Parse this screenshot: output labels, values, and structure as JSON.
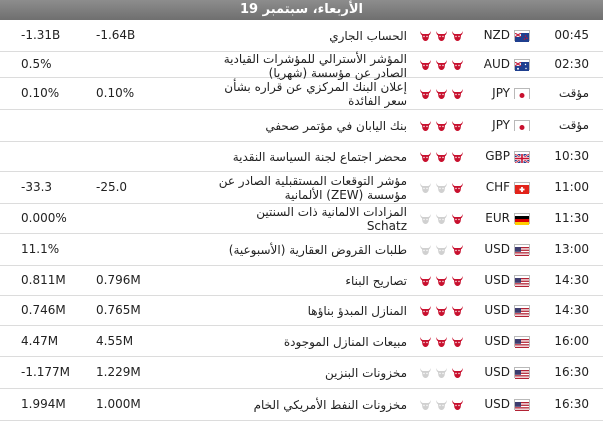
{
  "header": {
    "date_label": "الأربعاء، سبتمبر 19"
  },
  "rows": [
    {
      "time": "00:45",
      "flag": "nz",
      "currency": "NZD",
      "importance": 3,
      "event": "الحساب الجاري",
      "forecast": "-1.64B",
      "previous": "-1.31B"
    },
    {
      "time": "02:30",
      "flag": "au",
      "currency": "AUD",
      "importance": 3,
      "event": "المؤشر الأسترالي للمؤشرات القيادية الصادر عن مؤسسة (شهريا)",
      "forecast": "",
      "previous": "0.5%"
    },
    {
      "time": "مؤقت",
      "flag": "jp",
      "currency": "JPY",
      "importance": 3,
      "event": "إعلان البنك المركزي عن قراره بشأن سعر الفائدة",
      "forecast": "0.10%",
      "previous": "0.10%"
    },
    {
      "time": "مؤقت",
      "flag": "jp",
      "currency": "JPY",
      "importance": 3,
      "event": "بنك اليابان في مؤتمر صحفي",
      "forecast": "",
      "previous": ""
    },
    {
      "time": "10:30",
      "flag": "gb",
      "currency": "GBP",
      "importance": 3,
      "event": "محضر اجتماع لجنة السياسة النقدية",
      "forecast": "",
      "previous": ""
    },
    {
      "time": "11:00",
      "flag": "ch",
      "currency": "CHF",
      "importance": 1,
      "event": "مؤشر التوقعات المستقبلية الصادر عن مؤسسة (ZEW) الألمانية",
      "forecast": "-25.0",
      "previous": "-33.3"
    },
    {
      "time": "11:30",
      "flag": "de",
      "currency": "EUR",
      "importance": 1,
      "event": "المزادات الالمانية ذات السنتين Schatz",
      "forecast": "",
      "previous": "0.000%"
    },
    {
      "time": "13:00",
      "flag": "us",
      "currency": "USD",
      "importance": 1,
      "event": "طلبات القروض العقارية (الأسبوعية)",
      "forecast": "",
      "previous": "11.1%"
    },
    {
      "time": "14:30",
      "flag": "us",
      "currency": "USD",
      "importance": 3,
      "event": "تصاريح البناء",
      "forecast": "0.796M",
      "previous": "0.811M"
    },
    {
      "time": "14:30",
      "flag": "us",
      "currency": "USD",
      "importance": 3,
      "event": "المنازل المبدؤ بناؤها",
      "forecast": "0.765M",
      "previous": "0.746M"
    },
    {
      "time": "16:00",
      "flag": "us",
      "currency": "USD",
      "importance": 3,
      "event": "مبيعات المنازل الموجودة",
      "forecast": "4.55M",
      "previous": "4.47M"
    },
    {
      "time": "16:30",
      "flag": "us",
      "currency": "USD",
      "importance": 1,
      "event": "مخزونات البنزين",
      "forecast": "1.229M",
      "previous": "-1.177M"
    },
    {
      "time": "16:30",
      "flag": "us",
      "currency": "USD",
      "importance": 1,
      "event": "مخزونات النفط الأمريكي الخام",
      "forecast": "1.000M",
      "previous": "1.994M"
    }
  ],
  "colors": {
    "bull_active": "#c8102e",
    "bull_inactive": "#d0d0d0"
  }
}
